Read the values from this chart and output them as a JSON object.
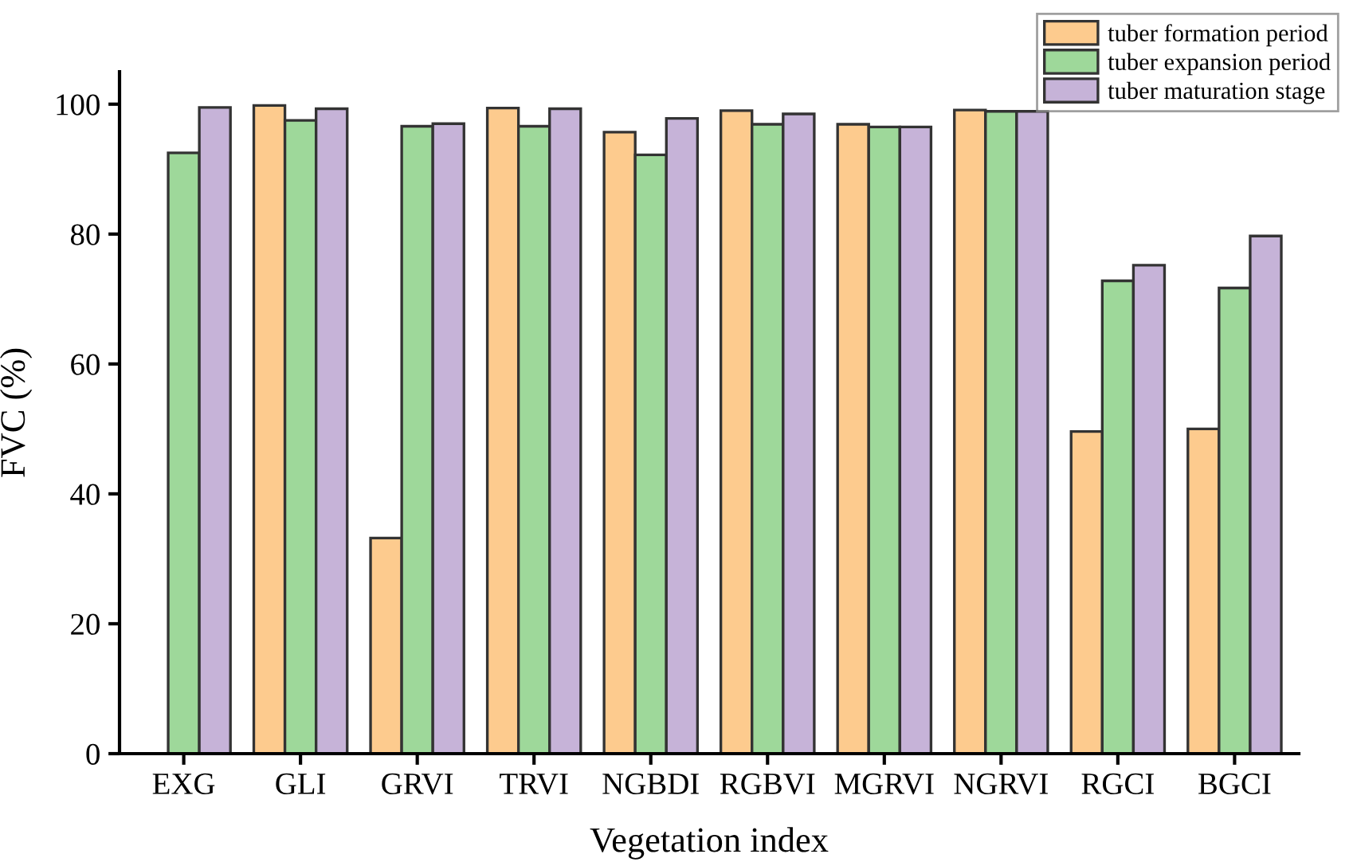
{
  "chart_data": {
    "type": "bar",
    "xlabel": "Vegetation index",
    "ylabel": "FVC (%)",
    "categories": [
      "EXG",
      "GLI",
      "GRVI",
      "TRVI",
      "NGBDI",
      "RGBVI",
      "MGRVI",
      "NGRVI",
      "RGCI",
      "BGCI"
    ],
    "series": [
      {
        "name": "tuber formation period",
        "color": "#fdcb8e",
        "values": [
          null,
          99.8,
          33.2,
          99.4,
          95.7,
          99.0,
          96.9,
          99.1,
          49.6,
          50.0
        ]
      },
      {
        "name": "tuber expansion period",
        "color": "#9ed89a",
        "values": [
          92.5,
          97.5,
          96.6,
          96.6,
          92.2,
          96.9,
          96.5,
          98.9,
          72.8,
          71.7
        ]
      },
      {
        "name": "tuber maturation stage",
        "color": "#c6b3d8",
        "values": [
          99.5,
          99.3,
          97.0,
          99.3,
          97.8,
          98.5,
          96.5,
          98.9,
          75.2,
          79.7
        ]
      }
    ],
    "ylim": [
      0,
      105
    ],
    "yticks": [
      0,
      20,
      40,
      60,
      80,
      100
    ],
    "grid": false,
    "legend": "top right"
  }
}
